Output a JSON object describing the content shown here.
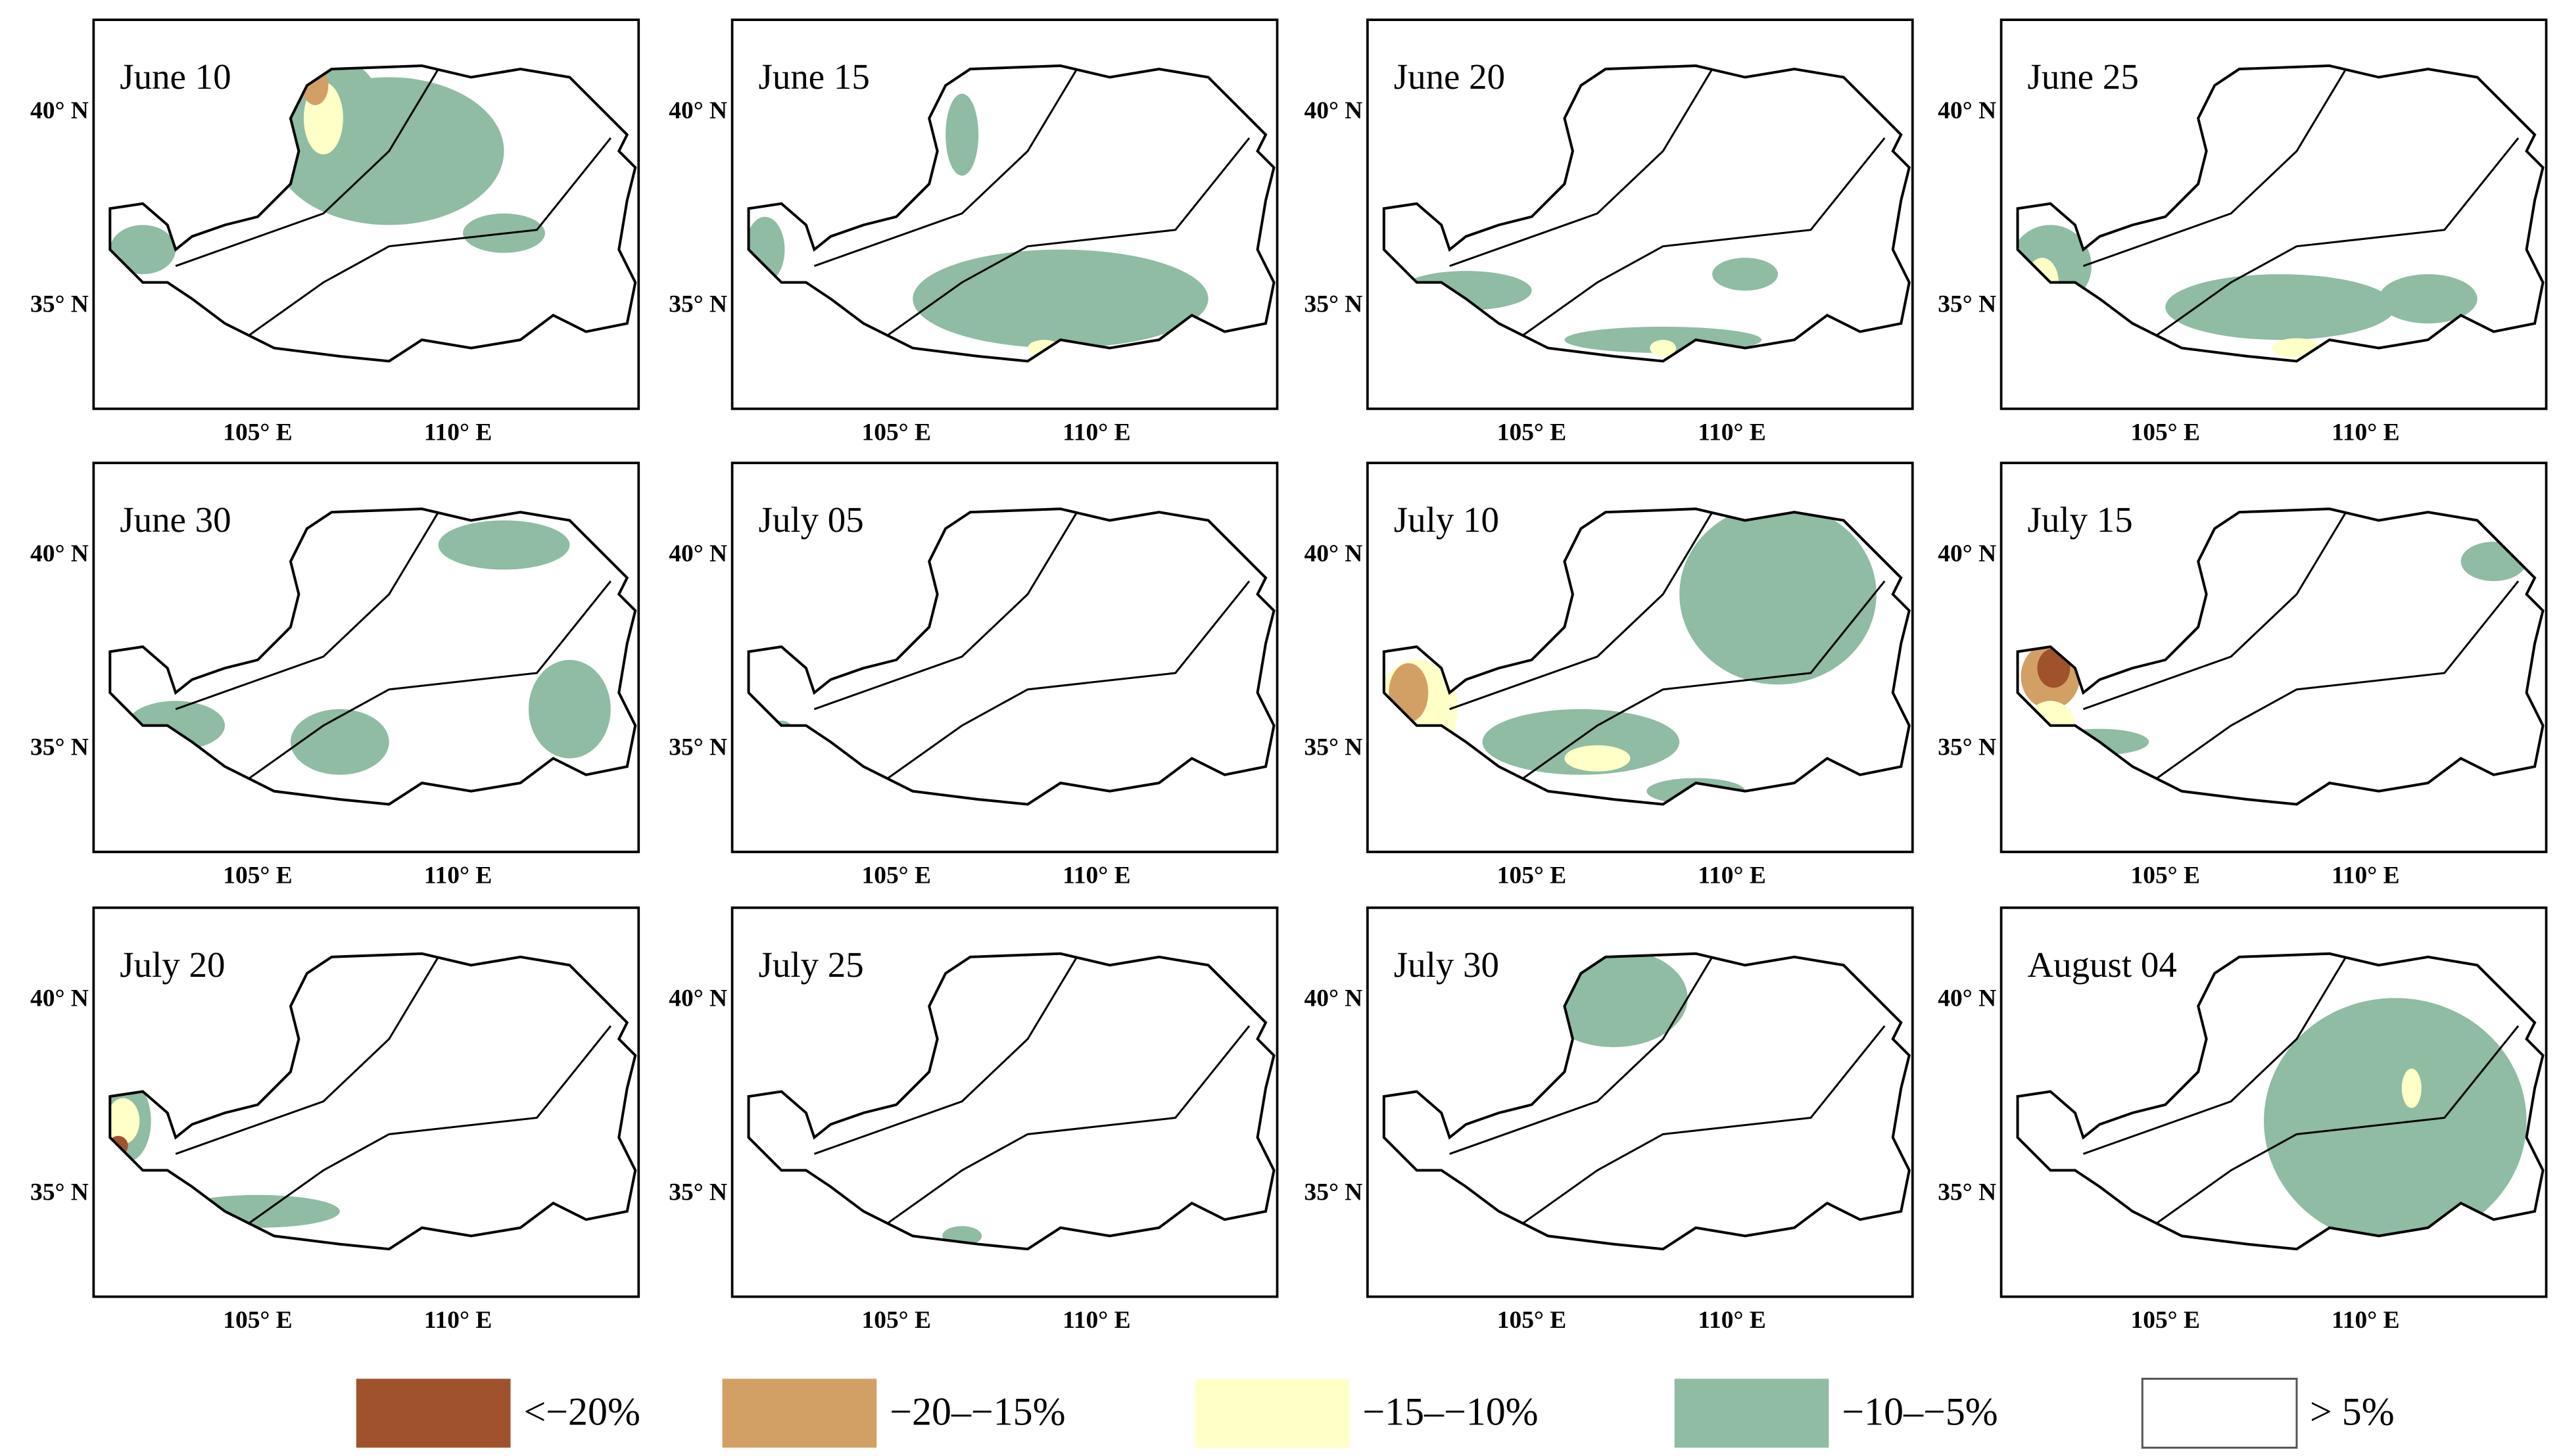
{
  "panels": [
    {
      "title": "June 10"
    },
    {
      "title": "June 15"
    },
    {
      "title": "June 20"
    },
    {
      "title": "June 25"
    },
    {
      "title": "June 30"
    },
    {
      "title": "July 05"
    },
    {
      "title": "July 10"
    },
    {
      "title": "July 15"
    },
    {
      "title": "July 20"
    },
    {
      "title": "July 25"
    },
    {
      "title": "July 30"
    },
    {
      "title": "August 04"
    }
  ],
  "lat_labels": [
    "40° N",
    "35° N"
  ],
  "lon_labels": [
    "105° E",
    "110° E"
  ],
  "legend": [
    {
      "label": "<−20%",
      "color": "#a0522d"
    },
    {
      "label": "−20–−15%",
      "color": "#d2a064"
    },
    {
      "label": "−15–−10%",
      "color": "#ffffc8"
    },
    {
      "label": "−10–−5%",
      "color": "#8fbca3"
    },
    {
      "label": "> 5%",
      "color": "#ffffff"
    }
  ]
}
